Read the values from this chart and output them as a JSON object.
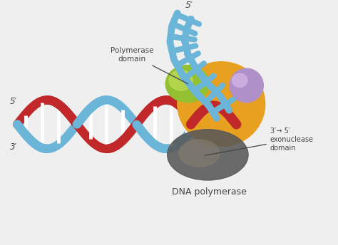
{
  "bg_color": "#efefef",
  "label_polymerase_domain": "Polymerase\ndomain",
  "label_exonuclease": "3′→ 5′\nexonuclease\ndomain",
  "label_dna_polymerase": "DNA polymerase",
  "label_5prime_top": "5′",
  "label_5prime_left": "5′",
  "label_3prime_left": "3′",
  "color_blue_strand": "#6bb5d8",
  "color_red_strand": "#c0282a",
  "color_orange_body": "#e8a020",
  "color_green_domain": "#92c030",
  "color_purple_domain": "#b090c8",
  "color_dark_domain": "#585858",
  "color_annotation": "#444444",
  "color_white": "#ffffff",
  "color_bg_light": "#f5f5f5"
}
